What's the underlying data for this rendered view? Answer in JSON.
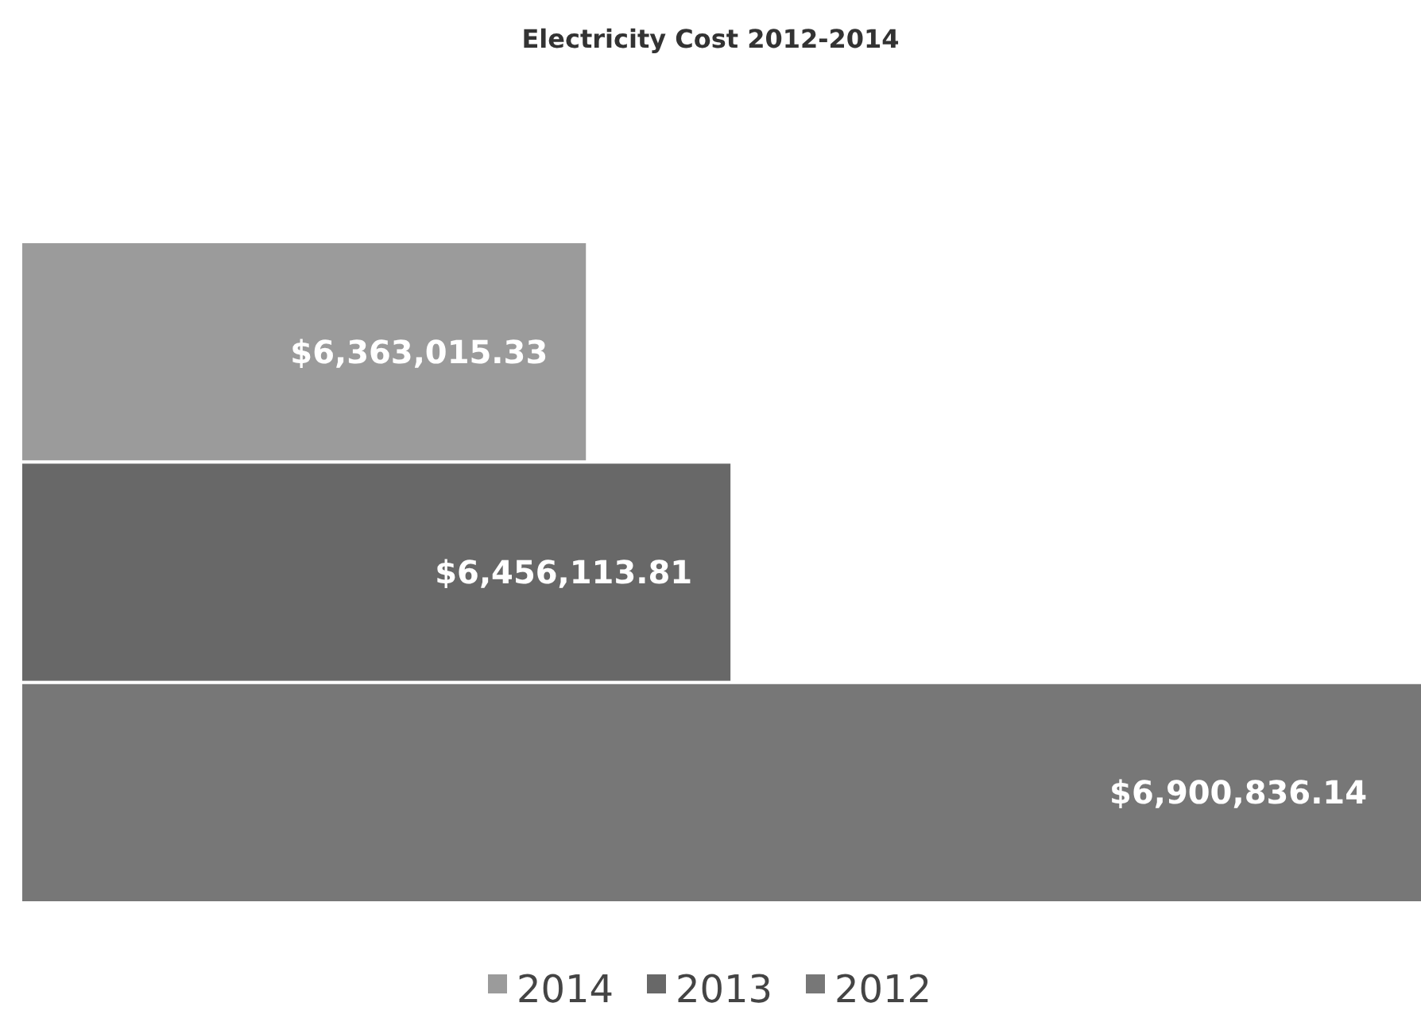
{
  "chart_data": {
    "type": "bar",
    "orientation": "horizontal",
    "title": "Electricity Cost 2012-2014",
    "categories": [
      null
    ],
    "series": [
      {
        "name": "2014",
        "color": "#9b9b9b",
        "values": [
          6363015.33
        ],
        "value_labels": [
          "$6,363,015.33"
        ]
      },
      {
        "name": "2013",
        "color": "#686868",
        "values": [
          6456113.81
        ],
        "value_labels": [
          "$6,456,113.81"
        ]
      },
      {
        "name": "2012",
        "color": "#777777",
        "values": [
          6900836.14
        ],
        "value_labels": [
          "$6,900,836.14"
        ]
      }
    ],
    "xlim": [
      6000000,
      6900836.14
    ],
    "legend": "bottom"
  }
}
